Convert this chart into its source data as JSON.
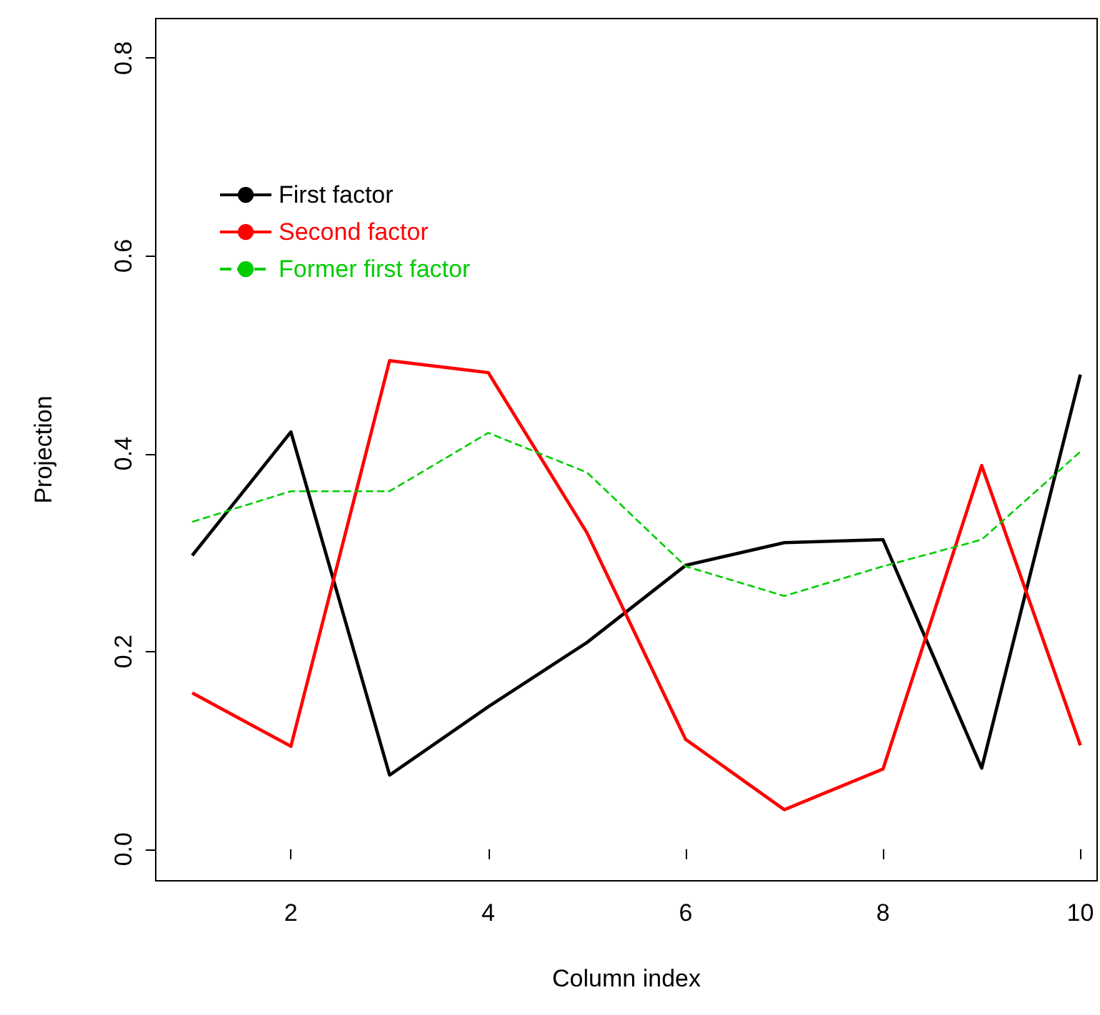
{
  "chart_data": {
    "type": "line",
    "xlabel": "Column index",
    "ylabel": "Projection",
    "x": [
      1,
      2,
      3,
      4,
      5,
      6,
      7,
      8,
      9,
      10
    ],
    "series": [
      {
        "name": "First factor",
        "color": "#000000",
        "line_style": "solid",
        "values": [
          0.297,
          0.422,
          0.075,
          0.144,
          0.209,
          0.287,
          0.31,
          0.313,
          0.082,
          0.48
        ]
      },
      {
        "name": "Second factor",
        "color": "#ff0000",
        "line_style": "solid",
        "values": [
          0.158,
          0.104,
          0.494,
          0.482,
          0.32,
          0.111,
          0.04,
          0.081,
          0.388,
          0.105
        ]
      },
      {
        "name": "Former first factor",
        "color": "#00cd00",
        "line_style": "dashed",
        "values": [
          0.331,
          0.362,
          0.362,
          0.421,
          0.381,
          0.286,
          0.256,
          0.286,
          0.313,
          0.402
        ]
      }
    ],
    "xlim": [
      0.63,
      10.17
    ],
    "xticks": [
      2,
      4,
      6,
      8,
      10
    ],
    "ylim": [
      -0.032,
      0.84
    ],
    "yticks": [
      {
        "value": 0,
        "label": "0.0"
      },
      0.2,
      0.4,
      0.6,
      0.8
    ],
    "legend": "top left",
    "grid": false,
    "marker": "none"
  }
}
